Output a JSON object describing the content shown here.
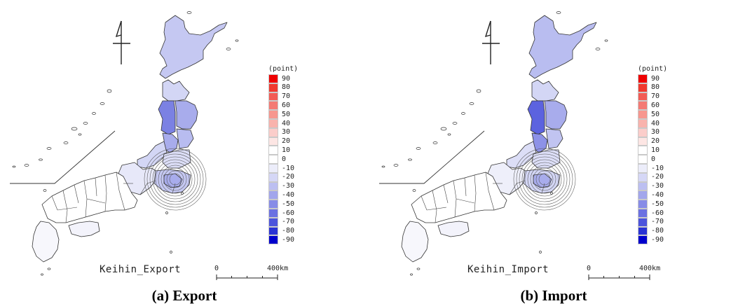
{
  "legend": {
    "unit": "(point)",
    "ticks": [
      "90",
      "80",
      "70",
      "60",
      "50",
      "40",
      "30",
      "20",
      "10",
      "0",
      "-10",
      "-20",
      "-30",
      "-40",
      "-50",
      "-60",
      "-70",
      "-80",
      "-90"
    ],
    "colors": [
      "#ee0000",
      "#f0392f",
      "#f25c55",
      "#f47a74",
      "#f7978f",
      "#f9b3ad",
      "#fbcdca",
      "#fde6e4",
      "#ffffff",
      "#ffffff",
      "#ecedfa",
      "#d5d7f6",
      "#bcbff1",
      "#a2a6ec",
      "#878ce7",
      "#6b71e2",
      "#4c54dc",
      "#2a33d4",
      "#0000cc"
    ]
  },
  "scale": {
    "zero": "0",
    "distance": "400km"
  },
  "panels": [
    {
      "map_name": "Keihin_Export",
      "caption": "(a) Export",
      "region_colors": {
        "hokkaido": "#c5c8f2",
        "aomori": "#d3d6f5",
        "akita": "#7b81e3",
        "iwate": "#a8acec",
        "yamagata": "#a8acec",
        "miyagi": "#b8bcf0",
        "niigata": "#d3d6f5",
        "fukushima": "#dcdef7",
        "kanto_inner": "#a8acec",
        "kanto_outer": "#c5c8f2",
        "chubu": "#e7e8f9",
        "west": "#ffffff",
        "shikoku": "#f3f3fb",
        "kyushu": "#f7f7fc",
        "islands": "#ffffff"
      }
    },
    {
      "map_name": "Keihin_Import",
      "caption": "(b) Import",
      "region_colors": {
        "hokkaido": "#b9bdf0",
        "aomori": "#d3d6f5",
        "akita": "#5c63df",
        "iwate": "#a8acec",
        "yamagata": "#8d92e7",
        "miyagi": "#c1c4f1",
        "niigata": "#dcdef7",
        "fukushima": "#dcdef7",
        "kanto_inner": "#a8acec",
        "kanto_outer": "#d3d6f5",
        "chubu": "#eeeffa",
        "west": "#ffffff",
        "shikoku": "#f3f3fb",
        "kyushu": "#f7f7fc",
        "islands": "#ffffff"
      }
    }
  ]
}
